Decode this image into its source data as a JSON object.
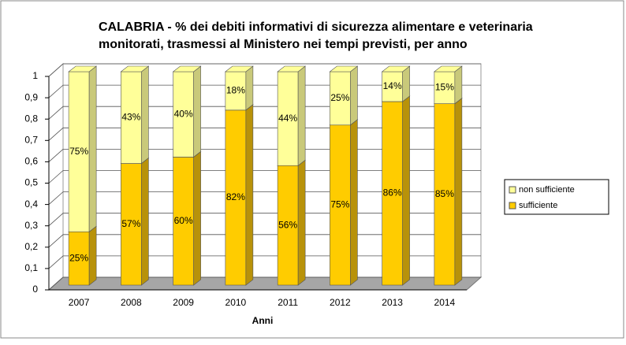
{
  "chart_data": {
    "type": "bar3d_stacked",
    "title": "CALABRIA - % dei debiti informativi di sicurezza alimentare e veterinaria",
    "subtitle": "monitorati, trasmessi al Ministero nei tempi previsti, per anno",
    "x_label": "Anni",
    "categories": [
      "2007",
      "2008",
      "2009",
      "2010",
      "2011",
      "2012",
      "2013",
      "2014"
    ],
    "series": [
      {
        "name": "sufficiente",
        "color": "#FFCC00",
        "side": "#B8920A",
        "values": [
          0.25,
          0.57,
          0.6,
          0.82,
          0.56,
          0.75,
          0.86,
          0.85
        ],
        "value_labels": [
          "25%",
          "57%",
          "60%",
          "82%",
          "56%",
          "75%",
          "86%",
          "85%"
        ]
      },
      {
        "name": "non sufficiente",
        "color": "#FFFF99",
        "side": "#C9C97A",
        "values": [
          0.75,
          0.43,
          0.4,
          0.18,
          0.44,
          0.25,
          0.14,
          0.15
        ],
        "value_labels": [
          "75%",
          "43%",
          "40%",
          "18%",
          "44%",
          "25%",
          "14%",
          "15%"
        ]
      }
    ],
    "ylim": [
      0,
      1
    ],
    "yticks": [
      0,
      {
        "value": 0.1,
        "label": "0,1"
      },
      {
        "value": 0.2,
        "label": "0,2"
      },
      {
        "value": 0.3,
        "label": "0,3"
      },
      {
        "value": 0.4,
        "label": "0,4"
      },
      {
        "value": 0.5,
        "label": "0,5"
      },
      {
        "value": 0.6,
        "label": "0,6"
      },
      {
        "value": 0.7,
        "label": "0,7"
      },
      {
        "value": 0.8,
        "label": "0,8"
      },
      {
        "value": 0.9,
        "label": "0,9"
      },
      1
    ],
    "grid": true,
    "legend": "right"
  }
}
